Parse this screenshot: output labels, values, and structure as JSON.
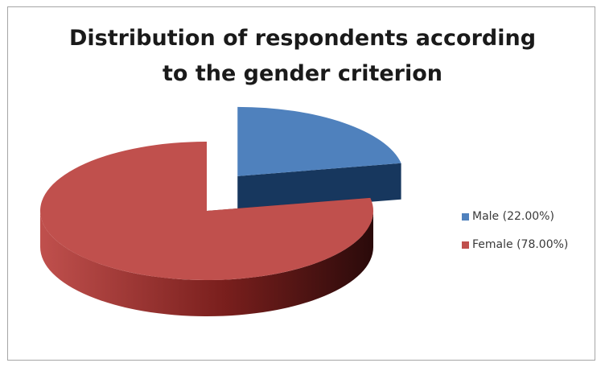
{
  "chart_data": {
    "type": "pie",
    "title_lines": [
      "Distribution of respondents according",
      "to the gender criterion"
    ],
    "slices": [
      {
        "label": "Male (22.00%)",
        "value": 22.0,
        "color": "#4f81bd",
        "side_color": "#17375e",
        "exploded": true
      },
      {
        "label": "Female (78.00%)",
        "value": 78.0,
        "color": "#c0504d",
        "side_color": "#7a1f1d",
        "exploded": false
      }
    ],
    "style": "3d-exploded",
    "legend_position": "right"
  }
}
